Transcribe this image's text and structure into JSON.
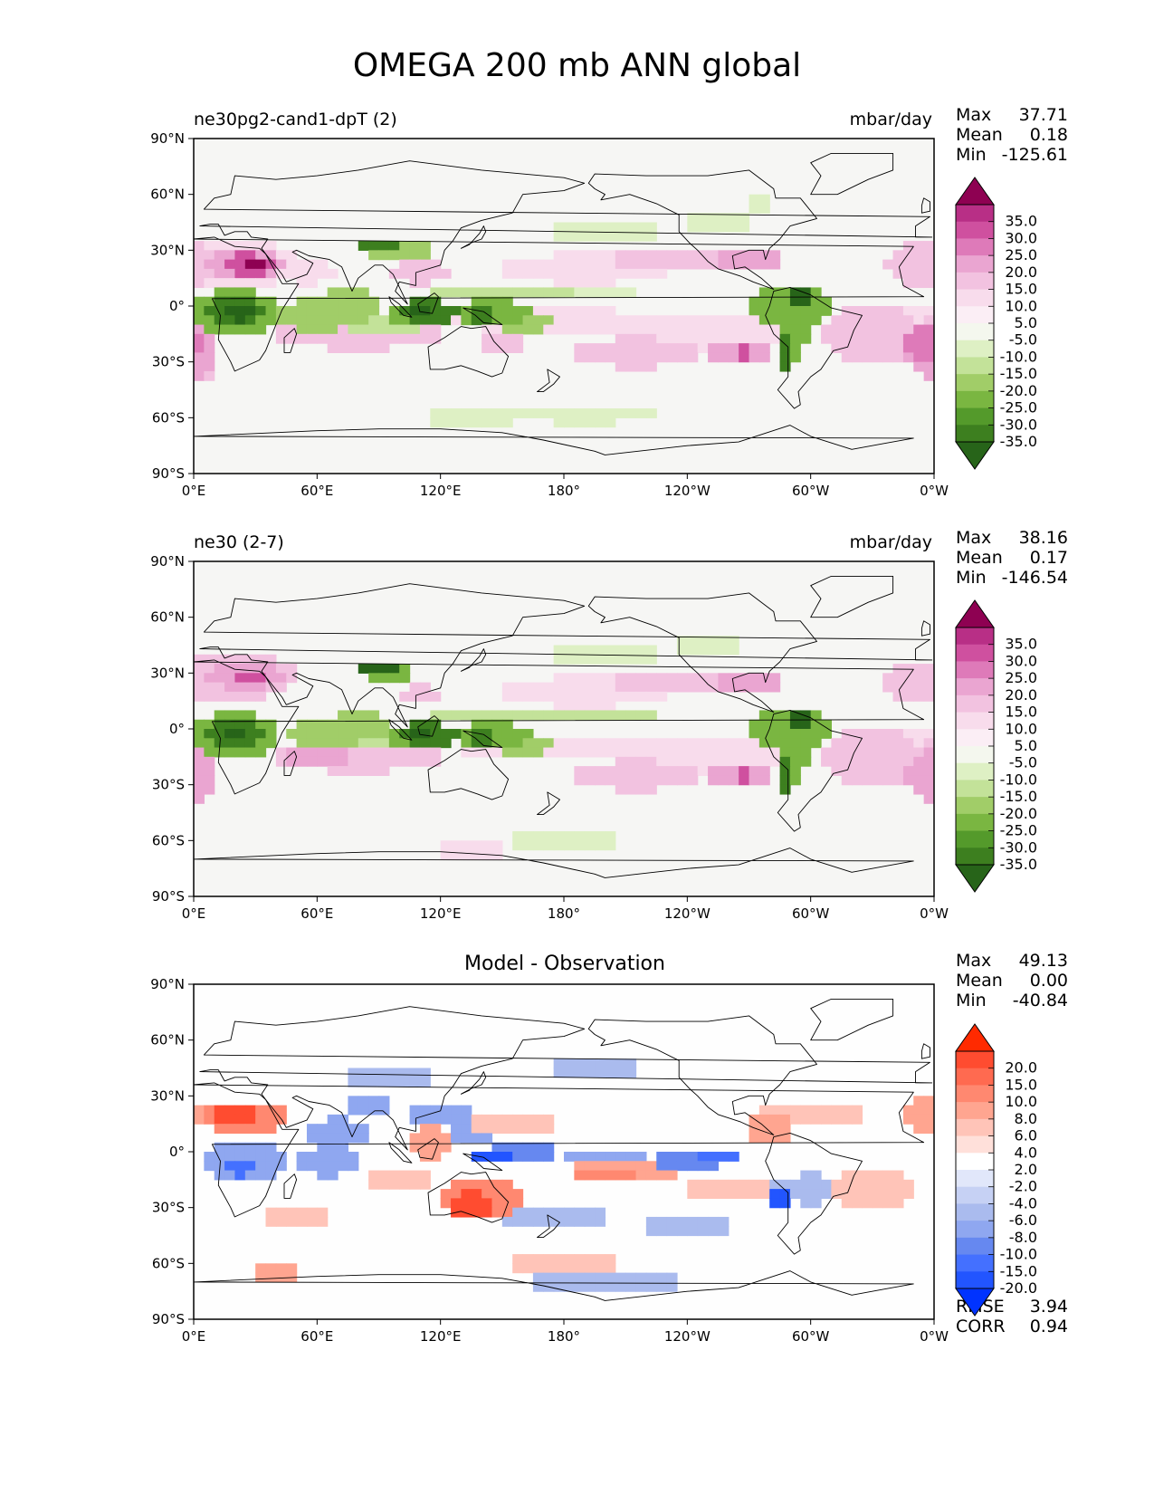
{
  "title": "OMEGA 200 mb ANN global",
  "colors": {
    "piyg": [
      "#276419",
      "#3d7f1f",
      "#549a2b",
      "#7ab641",
      "#a1cd68",
      "#c3e299",
      "#def0c4",
      "#f4f7ee",
      "#fbeef5",
      "#f8dcec",
      "#f2c2e0",
      "#eaa5d1",
      "#de7ab9",
      "#cf509f",
      "#b82f86",
      "#8e0152"
    ],
    "bwr": [
      "#0033ff",
      "#2255ff",
      "#4470ff",
      "#6688f0",
      "#8fa7f0",
      "#aabbee",
      "#c6d1f4",
      "#e1e7fa",
      "#ffffff",
      "#ffe0da",
      "#ffc4b8",
      "#ffa590",
      "#ff8870",
      "#ff6a50",
      "#ff4c30",
      "#ff2a00"
    ],
    "ocean": "#f6f6f4",
    "diff_bg": "#fefefe"
  },
  "axes": {
    "lat_ticks": [
      "90°N",
      "60°N",
      "30°N",
      "0°",
      "30°S",
      "60°S",
      "90°S"
    ],
    "lon_ticks": [
      "0°E",
      "60°E",
      "120°E",
      "180°",
      "120°W",
      "60°W",
      "0°W"
    ]
  },
  "panels": [
    {
      "label": "ne30pg2-cand1-dpT (2)",
      "units": "mbar/day",
      "stats": [
        {
          "name": "Max",
          "value": "37.71"
        },
        {
          "name": "Mean",
          "value": "0.18"
        },
        {
          "name": "Min",
          "value": "-125.61"
        }
      ],
      "colorbar_labels": [
        "35.0",
        "30.0",
        "25.0",
        "20.0",
        "15.0",
        "10.0",
        "5.0",
        "-5.0",
        "-10.0",
        "-15.0",
        "-20.0",
        "-25.0",
        "-30.0",
        "-35.0"
      ]
    },
    {
      "label": "ne30 (2-7)",
      "units": "mbar/day",
      "stats": [
        {
          "name": "Max",
          "value": "38.16"
        },
        {
          "name": "Mean",
          "value": "0.17"
        },
        {
          "name": "Min",
          "value": "-146.54"
        }
      ],
      "colorbar_labels": [
        "35.0",
        "30.0",
        "25.0",
        "20.0",
        "15.0",
        "10.0",
        "5.0",
        "-5.0",
        "-10.0",
        "-15.0",
        "-20.0",
        "-25.0",
        "-30.0",
        "-35.0"
      ]
    },
    {
      "title": "Model - Observation",
      "stats": [
        {
          "name": "Max",
          "value": "49.13"
        },
        {
          "name": "Mean",
          "value": "0.00"
        },
        {
          "name": "Min",
          "value": "-40.84"
        }
      ],
      "colorbar_labels": [
        "20.0",
        "15.0",
        "10.0",
        "8.0",
        "6.0",
        "4.0",
        "2.0",
        "-2.0",
        "-4.0",
        "-6.0",
        "-8.0",
        "-10.0",
        "-15.0",
        "-20.0"
      ],
      "metrics": [
        {
          "name": "RMSE",
          "value": "3.94"
        },
        {
          "name": "CORR",
          "value": "0.94"
        }
      ]
    }
  ]
}
